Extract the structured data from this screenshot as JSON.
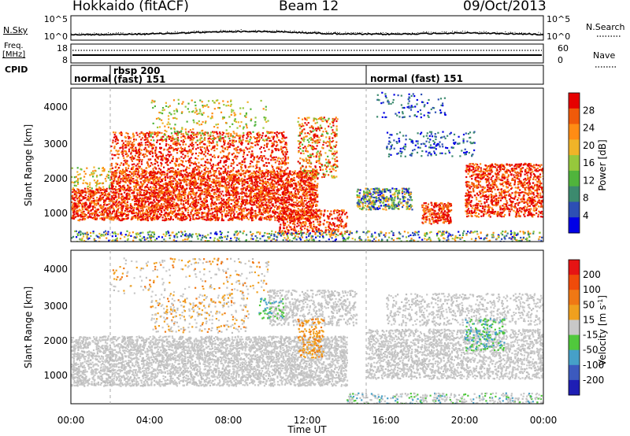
{
  "header": {
    "station": "Hokkaido (fitACF)",
    "beam": "Beam 12",
    "date": "09/Oct/2013"
  },
  "side_labels": {
    "nsky": "N.Sky",
    "freq": "Freq.",
    "freq_unit": "[MHz]",
    "cpid": "CPID",
    "nsearch": "N.Search",
    "nave": "Nave"
  },
  "noise_panel": {
    "left_ticks": [
      "10^5",
      "10^0"
    ],
    "right_ticks": [
      "10^5",
      "10^0"
    ]
  },
  "freq_panel": {
    "left_ticks": [
      "18",
      "8"
    ],
    "right_ticks": [
      "60",
      "0"
    ]
  },
  "cpid_panel": {
    "segments": [
      {
        "label": "normal",
        "start_hour": 0,
        "end_hour": 2.0
      },
      {
        "label": "rbsp 200",
        "label2": "(fast) 151",
        "start_hour": 2.0,
        "end_hour": 15.0
      },
      {
        "label": "normal (fast) 151",
        "start_hour": 15.0,
        "end_hour": 24
      }
    ]
  },
  "chart_data": [
    {
      "type": "heatmap",
      "name": "Power",
      "ylabel": "Slant Range [km]",
      "ylim": [
        180,
        4500
      ],
      "yticks": [
        "1000",
        "2000",
        "3000",
        "4000"
      ],
      "xlim": [
        0,
        24
      ],
      "colorbar": {
        "label": "Power [dB]",
        "ticks": [
          "4",
          "8",
          "12",
          "16",
          "20",
          "24",
          "28"
        ],
        "colors": [
          "#0000e6",
          "#2d4fb4",
          "#3c8a6e",
          "#50b43c",
          "#96c83c",
          "#f0b428",
          "#ff8c14",
          "#f05a0a",
          "#e60000"
        ]
      }
    },
    {
      "type": "heatmap",
      "name": "Velocity",
      "ylabel": "Slant Range [km]",
      "ylim": [
        180,
        4500
      ],
      "yticks": [
        "1000",
        "2000",
        "3000",
        "4000"
      ],
      "xlim": [
        0,
        24
      ],
      "xlabel": "Time UT",
      "xticks": [
        "00:00",
        "04:00",
        "08:00",
        "12:00",
        "16:00",
        "20:00",
        "00:00"
      ],
      "colorbar": {
        "label": "Velocity [m s",
        "label_sup": "-1",
        "label_end": "]",
        "ticks": [
          "200",
          "100",
          "50",
          "15",
          "-15",
          "-50",
          "-100",
          "-200"
        ],
        "colors": [
          "#1e1eb4",
          "#3c5abe",
          "#46a0c8",
          "#50c83c",
          "#c8c8c8",
          "#f0a01e",
          "#f07814",
          "#f04b0a",
          "#e61414"
        ]
      }
    }
  ],
  "colors": {
    "ground_scatter": "#c8c8c8",
    "grid_dash": "#aaaaaa"
  }
}
